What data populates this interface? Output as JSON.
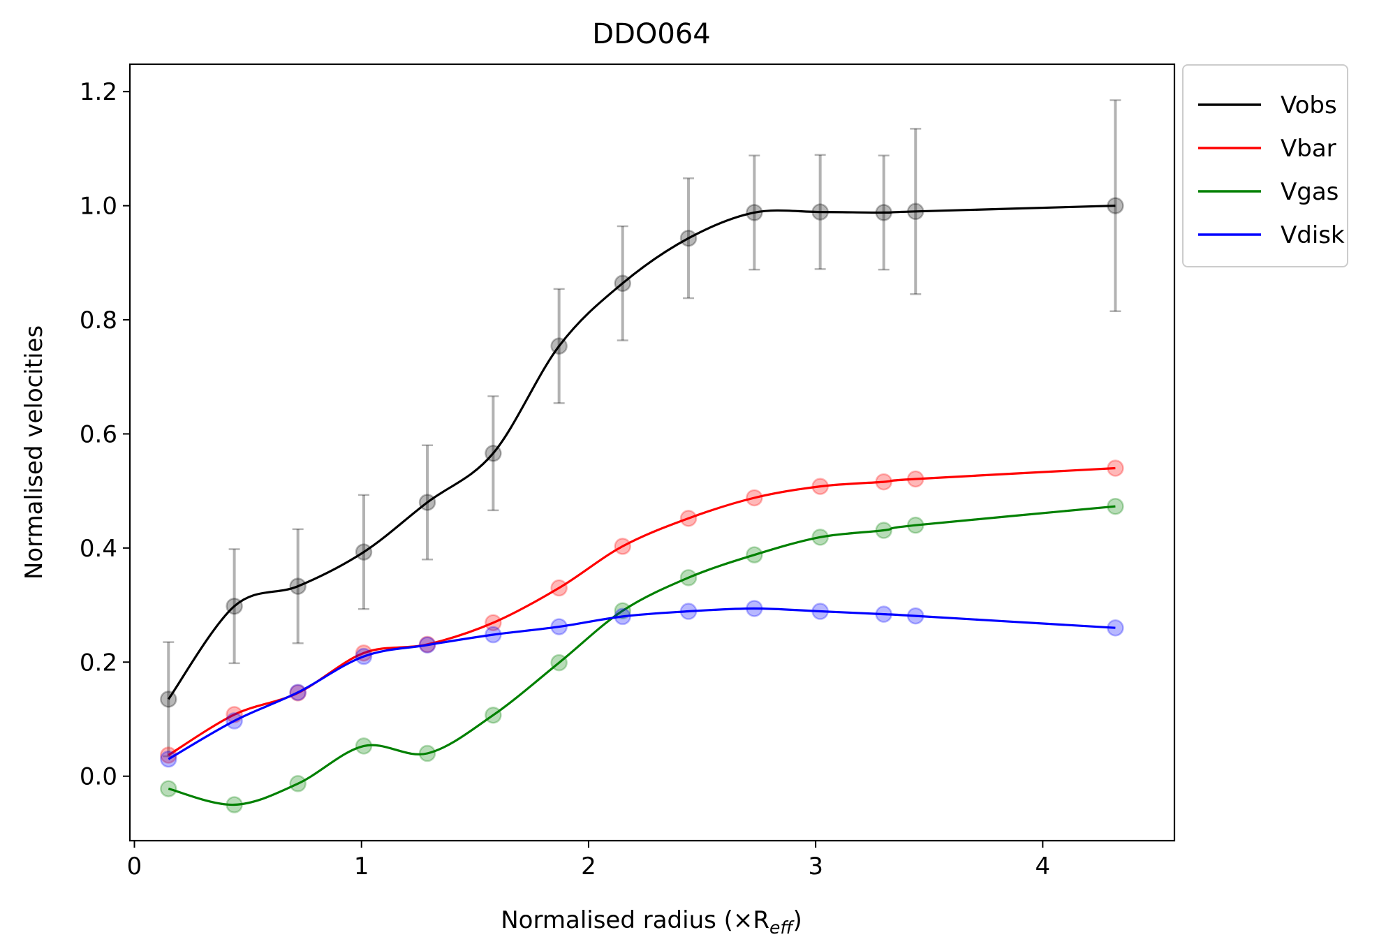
{
  "chart_data": {
    "type": "line",
    "title": "DDO064",
    "xlabel": "Normalised radius (×R",
    "xlabel_sub": "eff",
    "xlabel_close": ")",
    "ylabel": "Normalised velocities",
    "xlim": [
      -0.02,
      4.58
    ],
    "ylim": [
      -0.113,
      1.248
    ],
    "xticks": [
      0,
      1,
      2,
      3,
      4
    ],
    "yticks": [
      0.0,
      0.2,
      0.4,
      0.6,
      0.8,
      1.0,
      1.2
    ],
    "ytick_labels": [
      "0.0",
      "0.2",
      "0.4",
      "0.6",
      "0.8",
      "1.0",
      "1.2"
    ],
    "grid": false,
    "legend_position": "outside top-right",
    "x": [
      0.15,
      0.44,
      0.72,
      1.01,
      1.29,
      1.58,
      1.87,
      2.15,
      2.44,
      2.73,
      3.02,
      3.3,
      3.44,
      4.32
    ],
    "series": [
      {
        "name": "Vobs",
        "color": "#000000",
        "values": [
          0.135,
          0.298,
          0.333,
          0.393,
          0.48,
          0.566,
          0.754,
          0.864,
          0.943,
          0.988,
          0.989,
          0.988,
          0.99,
          1.0
        ],
        "errors": [
          0.1,
          0.1,
          0.1,
          0.1,
          0.1,
          0.1,
          0.1,
          0.1,
          0.105,
          0.1,
          0.1,
          0.1,
          0.145,
          0.185
        ]
      },
      {
        "name": "Vbar",
        "color": "#ff0000",
        "values": [
          0.037,
          0.108,
          0.146,
          0.216,
          0.231,
          0.269,
          0.33,
          0.403,
          0.452,
          0.488,
          0.508,
          0.516,
          0.521,
          0.54
        ]
      },
      {
        "name": "Vgas",
        "color": "#008000",
        "values": [
          -0.022,
          -0.05,
          -0.013,
          0.053,
          0.04,
          0.107,
          0.199,
          0.29,
          0.348,
          0.388,
          0.419,
          0.431,
          0.44,
          0.473
        ]
      },
      {
        "name": "Vdisk",
        "color": "#0000ff",
        "values": [
          0.03,
          0.097,
          0.147,
          0.21,
          0.23,
          0.248,
          0.262,
          0.28,
          0.289,
          0.294,
          0.289,
          0.284,
          0.281,
          0.26
        ]
      }
    ]
  }
}
